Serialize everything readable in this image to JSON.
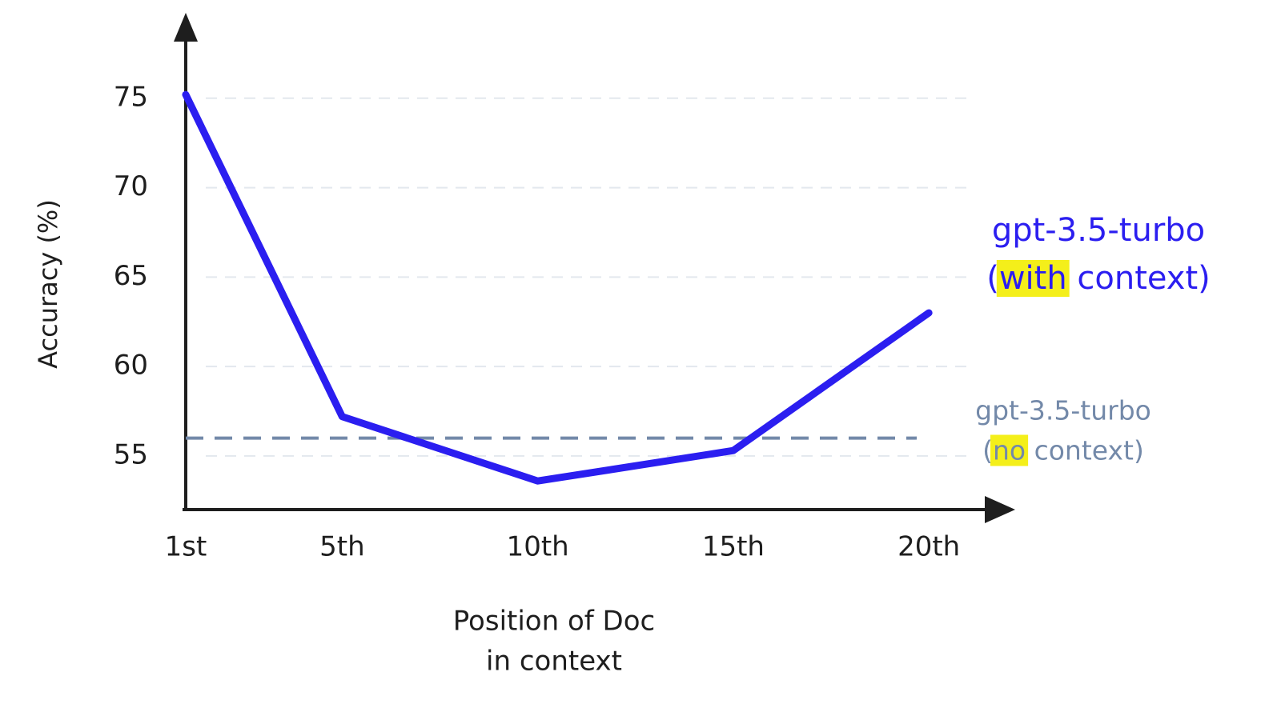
{
  "chart_data": {
    "type": "line",
    "ylabel": "Accuracy (%)",
    "xlabel": [
      "Position of Doc",
      "in context"
    ],
    "x": [
      1,
      5,
      10,
      15,
      20
    ],
    "xlim": [
      1,
      21
    ],
    "xticks": [
      {
        "value": 1,
        "label": "1st"
      },
      {
        "value": 5,
        "label": "5th"
      },
      {
        "value": 10,
        "label": "10th"
      },
      {
        "value": 15,
        "label": "15th"
      },
      {
        "value": 20,
        "label": "20th"
      }
    ],
    "ylim": [
      52,
      80
    ],
    "yticks": [
      55,
      60,
      65,
      70,
      75
    ],
    "grid": true,
    "series": [
      {
        "name": "gpt-3.5-turbo",
        "note": "(with context)",
        "color": "#2b1ef0",
        "values": [
          75.2,
          57.2,
          53.6,
          55.3,
          63
        ]
      }
    ],
    "reference": {
      "name": "gpt-3.5-turbo",
      "note": "(no context)",
      "color": "#7389a9",
      "value": 56
    }
  }
}
